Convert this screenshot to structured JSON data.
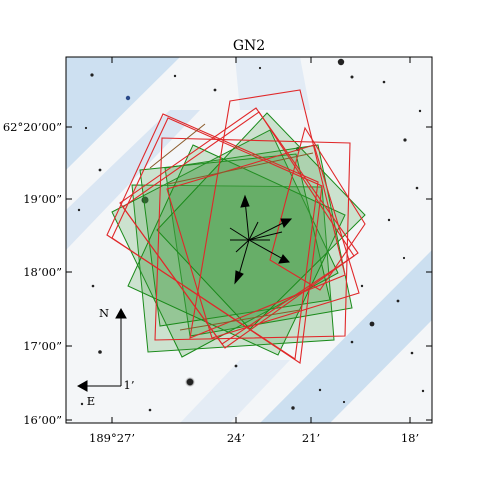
{
  "title": "GN2",
  "axes": {
    "dec_ticks": [
      "62°20’00”",
      "19’00”",
      "18’00”",
      "17’00”",
      "16’00”"
    ],
    "ra_ticks": [
      "189°27’",
      "24’",
      "21’",
      "18’"
    ]
  },
  "compass": {
    "north": "N",
    "east": "E",
    "scale": "1’"
  },
  "colors": {
    "green_fill": "#3f9a3f",
    "green_edge": "#1a8a1a",
    "red_edge": "#e0282a",
    "brown_edge": "#8a5a2a",
    "sky_tint": "#b9d3ea"
  },
  "icons": [
    "compass-arrows-icon",
    "orientation-arrows-icon"
  ]
}
